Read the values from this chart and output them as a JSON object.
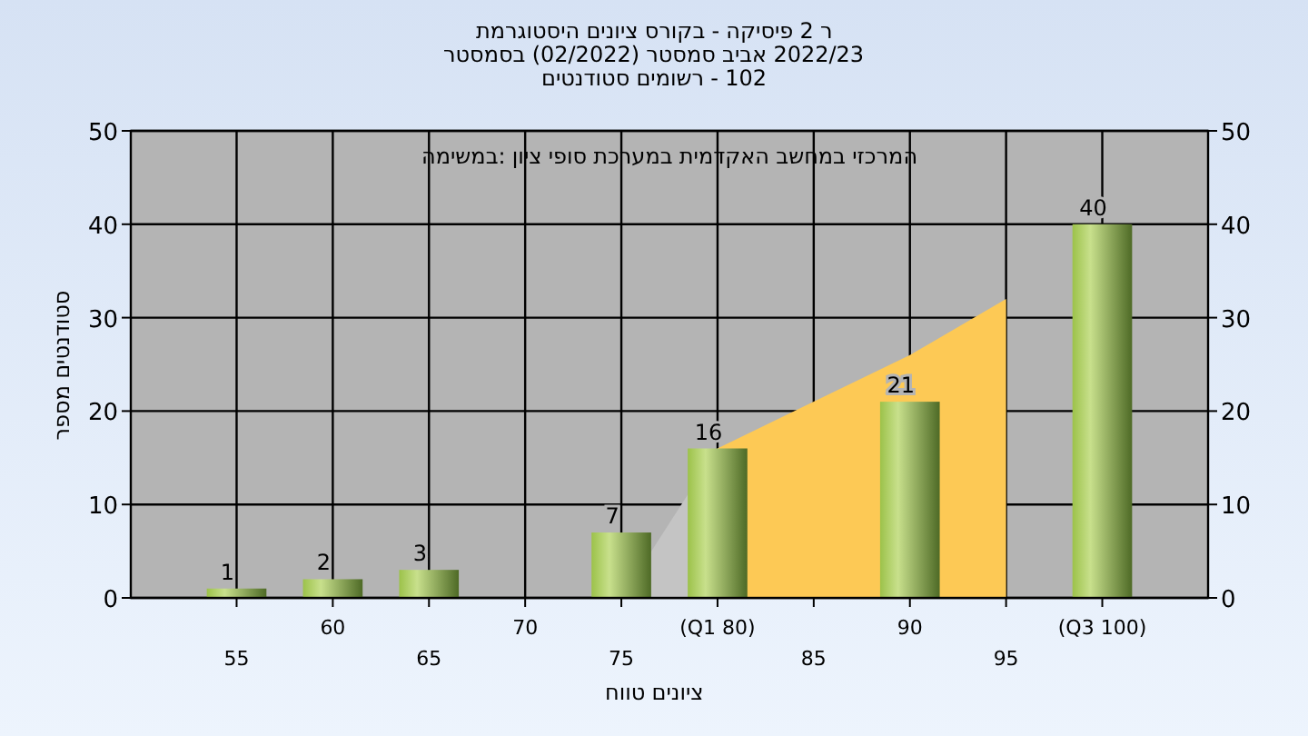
{
  "chart_data": {
    "type": "bar",
    "title": "היסטוגרמת ציונים בקורס - פיסיקה 2 ר",
    "subtitle": "בסמסטר  (02/2022)  סמסטר אביב 2022/23\nסטודנטים רשומים - 102",
    "xlabel": "טווח ציונים",
    "ylabel": "מספר סטודנטים",
    "annotations": [
      "במשימה: ציון סופי במערכת האקדמית במחשב המרכזי"
    ],
    "categories": [
      "55",
      "60",
      "65",
      "70",
      "75",
      "(Q1 80)",
      "85",
      "90",
      "95",
      "(Q3 100)"
    ],
    "series": [
      {
        "type": "area",
        "color": "#c4c4c4",
        "values": [
          null,
          null,
          null,
          null,
          0,
          16,
          null,
          null,
          null,
          null
        ]
      },
      {
        "type": "area",
        "color": "#fdc955",
        "values": [
          null,
          null,
          null,
          null,
          null,
          16,
          21,
          26,
          32,
          null
        ]
      },
      {
        "color": "#9cc24a",
        "values": [
          1,
          2,
          3,
          null,
          7,
          16,
          null,
          21,
          null,
          40
        ],
        "value_labels": [
          "1",
          "2",
          "3",
          null,
          "7",
          "16",
          null,
          "21",
          null,
          "40"
        ]
      }
    ],
    "ylim": [
      0,
      50
    ],
    "yticks": [
      0,
      10,
      20,
      30,
      40,
      50
    ],
    "y2lim": [
      0,
      50
    ],
    "y2ticks": [
      0,
      10,
      20,
      30,
      40,
      50
    ],
    "grid": true
  }
}
